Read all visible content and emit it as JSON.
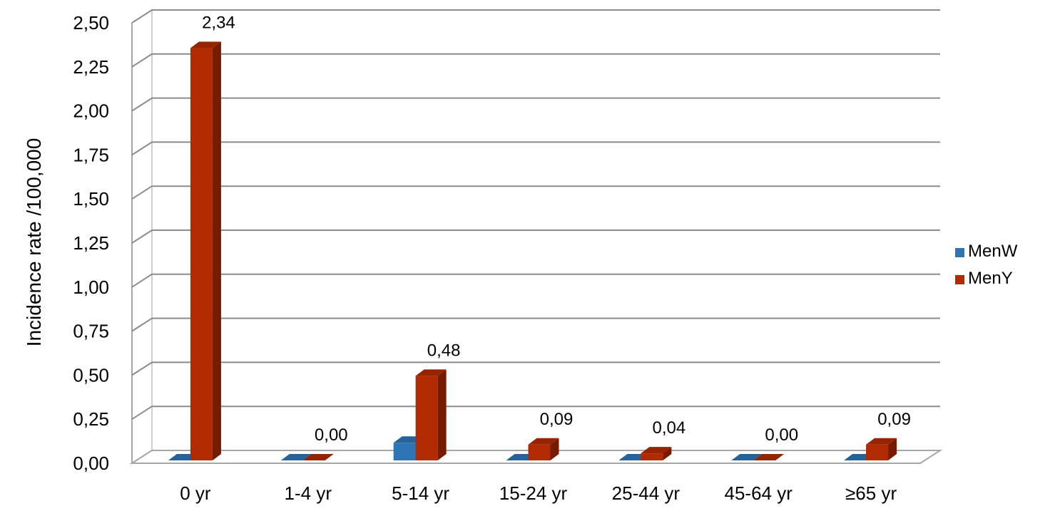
{
  "chart_data": {
    "type": "bar",
    "title": "",
    "xlabel": "",
    "ylabel": "Incidence rate /100,000",
    "ylim": [
      0,
      2.5
    ],
    "yticks": [
      "0,00",
      "0,25",
      "0,50",
      "0,75",
      "1,00",
      "1,25",
      "1,50",
      "1,75",
      "2,00",
      "2,25",
      "2,50"
    ],
    "categories": [
      "0 yr",
      "1-4 yr",
      "5-14 yr",
      "15-24 yr",
      "25-44 yr",
      "45-64 yr",
      "≥65 yr"
    ],
    "series": [
      {
        "name": "MenW",
        "values": [
          0.0,
          0.0,
          0.1,
          0.0,
          0.0,
          0.0,
          0.0
        ]
      },
      {
        "name": "MenY",
        "values": [
          2.34,
          0.0,
          0.48,
          0.09,
          0.04,
          0.0,
          0.09
        ]
      }
    ],
    "data_labels": {
      "series": "MenY",
      "labels": [
        "2,34",
        "0,00",
        "0,48",
        "0,09",
        "0,04",
        "0,00",
        "0,09"
      ]
    },
    "grid": true,
    "legend_position": "right",
    "style": "3d-clustered-column",
    "colors": {
      "MenW": "#2E75B6",
      "MenY": "#B22A00"
    }
  }
}
